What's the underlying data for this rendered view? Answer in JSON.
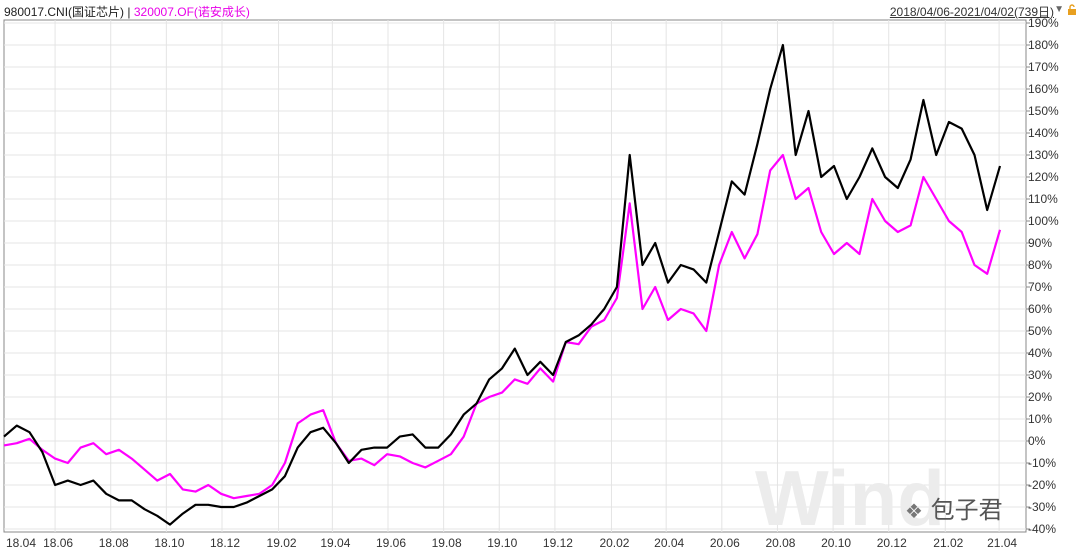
{
  "header": {
    "series1_label": "980017.CNI(国证芯片)",
    "separator": "|",
    "series2_label": "320007.OF(诺安成长)",
    "date_range": "2018/04/06-2021/04/02(739日)"
  },
  "watermark": {
    "logo_text": "Wind",
    "account": "包子君"
  },
  "colors": {
    "series1": "#000000",
    "series2": "#ff00ff",
    "grid": "#e4e4e4",
    "axis": "#888888"
  },
  "chart_data": {
    "type": "line",
    "title": "",
    "xlabel": "",
    "ylabel": "",
    "x_ticks": [
      "18.04",
      "18.06",
      "18.08",
      "18.10",
      "18.12",
      "19.02",
      "19.04",
      "19.06",
      "19.08",
      "19.10",
      "19.12",
      "20.02",
      "20.04",
      "20.06",
      "20.08",
      "20.10",
      "20.12",
      "21.02",
      "21.04"
    ],
    "y_ticks": [
      "190%",
      "180%",
      "170%",
      "160%",
      "150%",
      "140%",
      "130%",
      "120%",
      "110%",
      "100%",
      "90%",
      "80%",
      "70%",
      "60%",
      "50%",
      "40%",
      "30%",
      "20%",
      "10%",
      "0%",
      "-10%",
      "-20%",
      "-30%",
      "-40%"
    ],
    "ylim": [
      -40,
      190
    ],
    "y_unit": "%",
    "grid": true,
    "series": [
      {
        "name": "980017.CNI(国证芯片)",
        "color": "#000000",
        "x": [
          "2018-04-06",
          "2018-04-20",
          "2018-05-04",
          "2018-05-18",
          "2018-06-01",
          "2018-06-15",
          "2018-06-29",
          "2018-07-13",
          "2018-07-27",
          "2018-08-10",
          "2018-08-24",
          "2018-09-07",
          "2018-09-21",
          "2018-10-05",
          "2018-10-19",
          "2018-11-02",
          "2018-11-16",
          "2018-11-30",
          "2018-12-14",
          "2018-12-28",
          "2019-01-11",
          "2019-01-25",
          "2019-02-08",
          "2019-02-22",
          "2019-03-08",
          "2019-03-22",
          "2019-04-05",
          "2019-04-19",
          "2019-05-03",
          "2019-05-17",
          "2019-05-31",
          "2019-06-14",
          "2019-06-28",
          "2019-07-12",
          "2019-07-26",
          "2019-08-09",
          "2019-08-23",
          "2019-09-06",
          "2019-09-20",
          "2019-10-04",
          "2019-10-18",
          "2019-11-01",
          "2019-11-15",
          "2019-11-29",
          "2019-12-13",
          "2019-12-27",
          "2020-01-10",
          "2020-01-24",
          "2020-02-07",
          "2020-02-21",
          "2020-03-06",
          "2020-03-20",
          "2020-04-03",
          "2020-04-17",
          "2020-05-01",
          "2020-05-15",
          "2020-05-29",
          "2020-06-12",
          "2020-06-26",
          "2020-07-10",
          "2020-07-24",
          "2020-08-07",
          "2020-08-21",
          "2020-09-04",
          "2020-09-18",
          "2020-10-02",
          "2020-10-16",
          "2020-10-30",
          "2020-11-13",
          "2020-11-27",
          "2020-12-11",
          "2020-12-25",
          "2021-01-08",
          "2021-01-22",
          "2021-02-05",
          "2021-02-19",
          "2021-03-05",
          "2021-03-19",
          "2021-04-02"
        ],
        "values": [
          2,
          7,
          4,
          -5,
          -20,
          -18,
          -20,
          -18,
          -24,
          -27,
          -27,
          -31,
          -34,
          -38,
          -33,
          -29,
          -29,
          -30,
          -30,
          -28,
          -25,
          -22,
          -16,
          -3,
          4,
          6,
          -1,
          -10,
          -4,
          -3,
          -3,
          2,
          3,
          -3,
          -3,
          3,
          12,
          17,
          28,
          33,
          42,
          30,
          36,
          30,
          45,
          48,
          53,
          60,
          70,
          130,
          80,
          90,
          72,
          80,
          78,
          72,
          95,
          118,
          112,
          135,
          160,
          180,
          130,
          150,
          120,
          125,
          110,
          120,
          133,
          120,
          115,
          128,
          155,
          130,
          145,
          142,
          130,
          105,
          125
        ]
      },
      {
        "name": "320007.OF(诺安成长)",
        "color": "#ff00ff",
        "x": [
          "2018-04-06",
          "2018-04-20",
          "2018-05-04",
          "2018-05-18",
          "2018-06-01",
          "2018-06-15",
          "2018-06-29",
          "2018-07-13",
          "2018-07-27",
          "2018-08-10",
          "2018-08-24",
          "2018-09-07",
          "2018-09-21",
          "2018-10-05",
          "2018-10-19",
          "2018-11-02",
          "2018-11-16",
          "2018-11-30",
          "2018-12-14",
          "2018-12-28",
          "2019-01-11",
          "2019-01-25",
          "2019-02-08",
          "2019-02-22",
          "2019-03-08",
          "2019-03-22",
          "2019-04-05",
          "2019-04-19",
          "2019-05-03",
          "2019-05-17",
          "2019-05-31",
          "2019-06-14",
          "2019-06-28",
          "2019-07-12",
          "2019-07-26",
          "2019-08-09",
          "2019-08-23",
          "2019-09-06",
          "2019-09-20",
          "2019-10-04",
          "2019-10-18",
          "2019-11-01",
          "2019-11-15",
          "2019-11-29",
          "2019-12-13",
          "2019-12-27",
          "2020-01-10",
          "2020-01-24",
          "2020-02-07",
          "2020-02-21",
          "2020-03-06",
          "2020-03-20",
          "2020-04-03",
          "2020-04-17",
          "2020-05-01",
          "2020-05-15",
          "2020-05-29",
          "2020-06-12",
          "2020-06-26",
          "2020-07-10",
          "2020-07-24",
          "2020-08-07",
          "2020-08-21",
          "2020-09-04",
          "2020-09-18",
          "2020-10-02",
          "2020-10-16",
          "2020-10-30",
          "2020-11-13",
          "2020-11-27",
          "2020-12-11",
          "2020-12-25",
          "2021-01-08",
          "2021-01-22",
          "2021-02-05",
          "2021-02-19",
          "2021-03-05",
          "2021-03-19",
          "2021-04-02"
        ],
        "values": [
          -2,
          -1,
          1,
          -4,
          -8,
          -10,
          -3,
          -1,
          -6,
          -4,
          -8,
          -13,
          -18,
          -15,
          -22,
          -23,
          -20,
          -24,
          -26,
          -25,
          -24,
          -20,
          -10,
          8,
          12,
          14,
          -1,
          -9,
          -8,
          -11,
          -6,
          -7,
          -10,
          -12,
          -9,
          -6,
          2,
          17,
          20,
          22,
          28,
          26,
          33,
          27,
          45,
          44,
          52,
          55,
          65,
          108,
          60,
          70,
          55,
          60,
          58,
          50,
          80,
          95,
          83,
          94,
          123,
          130,
          110,
          115,
          95,
          85,
          90,
          85,
          110,
          100,
          95,
          98,
          120,
          110,
          100,
          95,
          80,
          76,
          96
        ]
      }
    ]
  }
}
